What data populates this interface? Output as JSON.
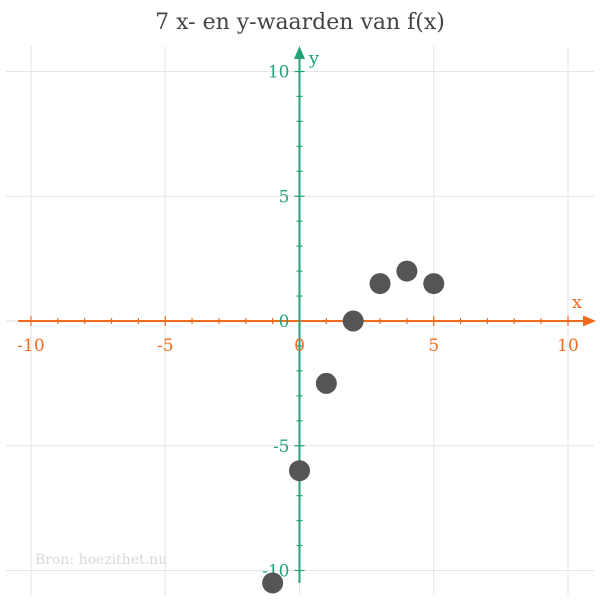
{
  "chart_data": {
    "type": "scatter",
    "title": "7 x- en y-waarden van f(x)",
    "xlabel": "x",
    "ylabel": "y",
    "xlim": [
      -10.5,
      10.5
    ],
    "ylim": [
      -10.5,
      10.5
    ],
    "x_ticks": [
      -10,
      -5,
      0,
      5,
      10
    ],
    "y_ticks": [
      -10,
      -5,
      0,
      5,
      10
    ],
    "grid": true,
    "series": [
      {
        "points": [
          {
            "x": -1,
            "y": -10.5
          },
          {
            "x": 0,
            "y": -6
          },
          {
            "x": 1,
            "y": -2.5
          },
          {
            "x": 2,
            "y": 0
          },
          {
            "x": 3,
            "y": 1.5
          },
          {
            "x": 4,
            "y": 2
          },
          {
            "x": 5,
            "y": 1.5
          }
        ]
      }
    ],
    "source": "Bron: hoezithet.nu",
    "colors": {
      "x_axis": "#f26b1d",
      "y_axis": "#22a37a",
      "points": "#555555",
      "grid": "#e6e6e6",
      "title": "#444444",
      "source": "#d9d9d9"
    }
  }
}
